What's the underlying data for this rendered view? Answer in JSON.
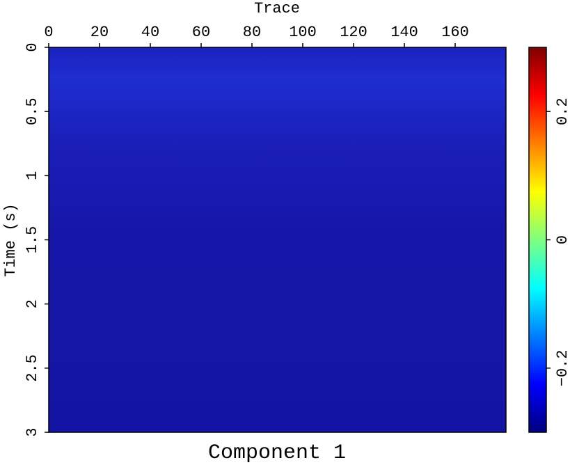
{
  "chart_data": {
    "type": "image",
    "title": "Component 1",
    "xlabel": "Trace",
    "ylabel": "Time (s)",
    "xlim": [
      0,
      180
    ],
    "xticks": [
      0,
      20,
      40,
      60,
      80,
      100,
      120,
      140,
      160
    ],
    "ylim": [
      0,
      3
    ],
    "y_reversed": true,
    "yticks": [
      0,
      0.5,
      1,
      1.5,
      2,
      2.5,
      3
    ],
    "colorbar": {
      "clim": [
        -0.3,
        0.3
      ],
      "ticks": [
        {
          "value": -0.2,
          "label": "−0.2"
        },
        0,
        0.2
      ],
      "colormap": [
        "#00007f",
        "#0000ff",
        "#007fff",
        "#00ffff",
        "#7fff7f",
        "#ffff00",
        "#ff7f00",
        "#ff0000",
        "#7f0000"
      ]
    }
  }
}
